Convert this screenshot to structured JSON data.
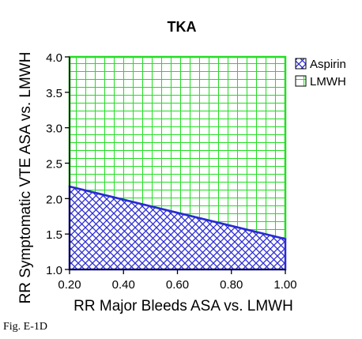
{
  "chart_data": {
    "type": "area",
    "title": "TKA",
    "xlabel": "RR Major Bleeds ASA vs. LMWH",
    "ylabel": "RR Symptomatic VTE ASA vs. LMWH",
    "xlim": [
      0.2,
      1.0
    ],
    "ylim": [
      1.0,
      4.0
    ],
    "x_ticks": [
      "0.20",
      "0.40",
      "0.60",
      "0.80",
      "1.00"
    ],
    "y_ticks": [
      "1.0",
      "1.5",
      "2.0",
      "2.5",
      "3.0",
      "3.5",
      "4.0"
    ],
    "x_tick_values": [
      0.2,
      0.4,
      0.6,
      0.8,
      1.0
    ],
    "y_tick_values": [
      1.0,
      1.5,
      2.0,
      2.5,
      3.0,
      3.5,
      4.0
    ],
    "boundary": {
      "x": [
        0.2,
        1.0
      ],
      "y": [
        2.17,
        1.43
      ]
    },
    "series": [
      {
        "name": "Aspirin",
        "region": "below boundary",
        "color": "#2b2bd6",
        "fill": "#ffffff",
        "pattern": "diagonal cross-hatch"
      },
      {
        "name": "LMWH",
        "region": "above boundary",
        "color": "#22dd22",
        "fill": "#ffffff",
        "pattern": "square grid"
      }
    ],
    "legend_position": "right",
    "grid": false
  },
  "caption": "Fig. E-1D"
}
